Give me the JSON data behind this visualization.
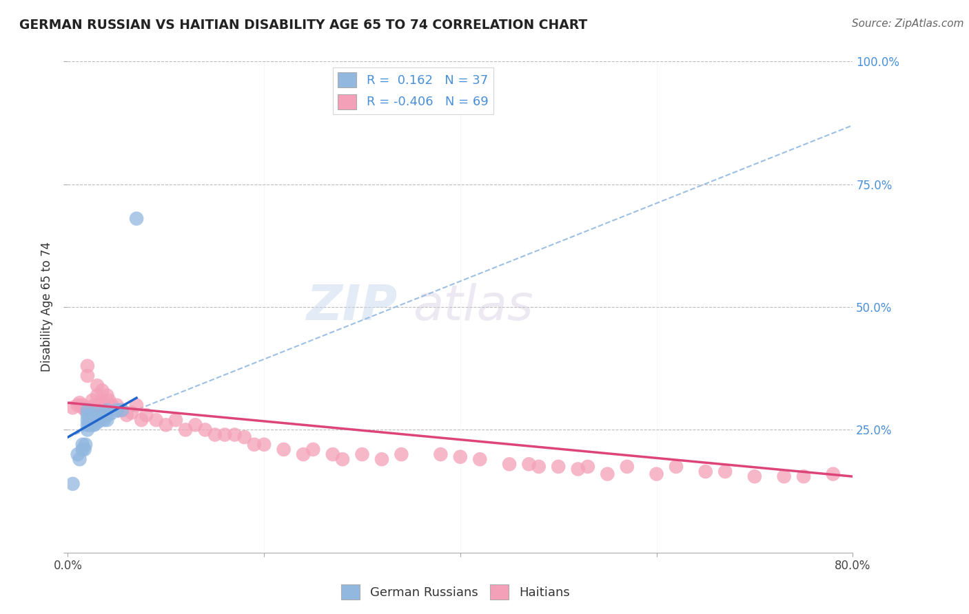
{
  "title": "GERMAN RUSSIAN VS HAITIAN DISABILITY AGE 65 TO 74 CORRELATION CHART",
  "source": "Source: ZipAtlas.com",
  "ylabel": "Disability Age 65 to 74",
  "xmin": 0.0,
  "xmax": 0.8,
  "ymin": 0.0,
  "ymax": 1.0,
  "yticks": [
    0.0,
    0.25,
    0.5,
    0.75,
    1.0
  ],
  "ytick_labels": [
    "",
    "25.0%",
    "50.0%",
    "75.0%",
    "100.0%"
  ],
  "german_russian_color": "#92b8e0",
  "haitian_color": "#f4a0b8",
  "trend_german_color": "#2266cc",
  "trend_haitian_color": "#dd4477",
  "dashed_line_color": "#92b8e0",
  "background_color": "#ffffff",
  "watermark_zip": "ZIP",
  "watermark_atlas": "atlas",
  "german_russian_x": [
    0.005,
    0.01,
    0.012,
    0.015,
    0.015,
    0.017,
    0.018,
    0.02,
    0.02,
    0.02,
    0.02,
    0.02,
    0.022,
    0.022,
    0.023,
    0.025,
    0.025,
    0.025,
    0.025,
    0.027,
    0.027,
    0.03,
    0.03,
    0.03,
    0.03,
    0.032,
    0.033,
    0.035,
    0.035,
    0.037,
    0.04,
    0.04,
    0.04,
    0.045,
    0.05,
    0.055,
    0.07
  ],
  "german_russian_y": [
    0.14,
    0.2,
    0.19,
    0.22,
    0.21,
    0.21,
    0.22,
    0.29,
    0.28,
    0.27,
    0.26,
    0.25,
    0.27,
    0.26,
    0.26,
    0.28,
    0.27,
    0.265,
    0.26,
    0.27,
    0.26,
    0.285,
    0.275,
    0.27,
    0.265,
    0.275,
    0.27,
    0.28,
    0.275,
    0.27,
    0.29,
    0.28,
    0.27,
    0.285,
    0.29,
    0.29,
    0.68
  ],
  "haitian_x": [
    0.005,
    0.01,
    0.012,
    0.015,
    0.015,
    0.018,
    0.02,
    0.02,
    0.022,
    0.025,
    0.025,
    0.027,
    0.03,
    0.03,
    0.032,
    0.035,
    0.035,
    0.037,
    0.04,
    0.04,
    0.042,
    0.045,
    0.05,
    0.05,
    0.055,
    0.06,
    0.065,
    0.07,
    0.075,
    0.08,
    0.09,
    0.1,
    0.11,
    0.12,
    0.13,
    0.14,
    0.15,
    0.16,
    0.17,
    0.18,
    0.19,
    0.2,
    0.22,
    0.24,
    0.25,
    0.27,
    0.28,
    0.3,
    0.32,
    0.34,
    0.38,
    0.4,
    0.42,
    0.45,
    0.47,
    0.48,
    0.5,
    0.52,
    0.53,
    0.55,
    0.57,
    0.6,
    0.62,
    0.65,
    0.67,
    0.7,
    0.73,
    0.75,
    0.78
  ],
  "haitian_y": [
    0.295,
    0.3,
    0.305,
    0.3,
    0.295,
    0.29,
    0.38,
    0.36,
    0.295,
    0.31,
    0.29,
    0.3,
    0.34,
    0.32,
    0.3,
    0.33,
    0.31,
    0.3,
    0.32,
    0.3,
    0.31,
    0.3,
    0.3,
    0.29,
    0.29,
    0.28,
    0.285,
    0.3,
    0.27,
    0.28,
    0.27,
    0.26,
    0.27,
    0.25,
    0.26,
    0.25,
    0.24,
    0.24,
    0.24,
    0.235,
    0.22,
    0.22,
    0.21,
    0.2,
    0.21,
    0.2,
    0.19,
    0.2,
    0.19,
    0.2,
    0.2,
    0.195,
    0.19,
    0.18,
    0.18,
    0.175,
    0.175,
    0.17,
    0.175,
    0.16,
    0.175,
    0.16,
    0.175,
    0.165,
    0.165,
    0.155,
    0.155,
    0.155,
    0.16
  ],
  "trend_german_x0": 0.0,
  "trend_german_y0": 0.235,
  "trend_german_x1": 0.07,
  "trend_german_y1": 0.315,
  "trend_german_dash_x1": 0.8,
  "trend_german_dash_y1": 0.87,
  "trend_haitian_x0": 0.0,
  "trend_haitian_y0": 0.305,
  "trend_haitian_x1": 0.8,
  "trend_haitian_y1": 0.155
}
